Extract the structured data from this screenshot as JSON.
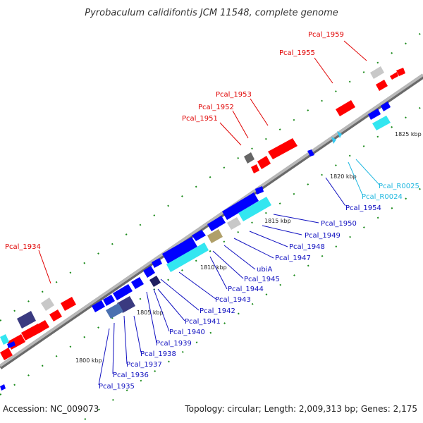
{
  "title": "Pyrobaculum calidifontis JCM 11548, complete genome",
  "footer": {
    "accession": "Accession: NC_009073",
    "topology": "Topology: circular; Length: 2,009,313 bp; Genes: 2,175"
  },
  "colors": {
    "forward_cds": "#ff0000",
    "reverse_cds": "#0000ff",
    "rna": "#33e6f0",
    "backbone": "#a8a8a8",
    "tick": "#1a8a1a"
  },
  "genome": {
    "region_start_kbp": 1798,
    "region_end_kbp": 1827,
    "ticks": [
      {
        "label": "1800 kbp",
        "kbp": 1800
      },
      {
        "label": "1805 kbp",
        "kbp": 1805
      },
      {
        "label": "1810 kbp",
        "kbp": 1810
      },
      {
        "label": "1815 kbp",
        "kbp": 1815
      },
      {
        "label": "1820 kbp",
        "kbp": 1820
      },
      {
        "label": "1825 kbp",
        "kbp": 1825
      }
    ]
  },
  "gene_labels": [
    {
      "name": "Pcal_1959",
      "color": "red"
    },
    {
      "name": "Pcal_1955",
      "color": "red"
    },
    {
      "name": "Pcal_1953",
      "color": "red"
    },
    {
      "name": "Pcal_1952",
      "color": "red"
    },
    {
      "name": "Pcal_1951",
      "color": "red"
    },
    {
      "name": "Pcal_1934",
      "color": "red"
    },
    {
      "name": "Pcal_R0025",
      "color": "cyan"
    },
    {
      "name": "Pcal_R0024",
      "color": "cyan"
    },
    {
      "name": "Pcal_1954",
      "color": "blue"
    },
    {
      "name": "Pcal_1950",
      "color": "blue"
    },
    {
      "name": "Pcal_1949",
      "color": "blue"
    },
    {
      "name": "Pcal_1948",
      "color": "blue"
    },
    {
      "name": "Pcal_1947",
      "color": "blue"
    },
    {
      "name": "ubiA",
      "color": "blue"
    },
    {
      "name": "Pcal_1945",
      "color": "blue"
    },
    {
      "name": "Pcal_1944",
      "color": "blue"
    },
    {
      "name": "Pcal_1943",
      "color": "blue"
    },
    {
      "name": "Pcal_1942",
      "color": "blue"
    },
    {
      "name": "Pcal_1941",
      "color": "blue"
    },
    {
      "name": "Pcal_1940",
      "color": "blue"
    },
    {
      "name": "Pcal_1939",
      "color": "blue"
    },
    {
      "name": "Pcal_1938",
      "color": "blue"
    },
    {
      "name": "Pcal_1937",
      "color": "blue"
    },
    {
      "name": "Pcal_1936",
      "color": "blue"
    },
    {
      "name": "Pcal_1935",
      "color": "blue"
    }
  ]
}
